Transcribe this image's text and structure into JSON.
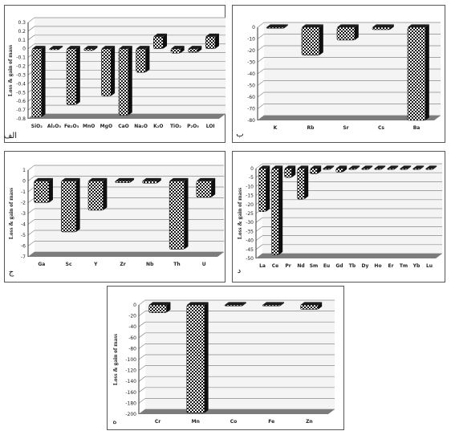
{
  "chart_data": [
    {
      "type": "bar",
      "panel_label": "الف",
      "ylabel": "Loss & gain of mass",
      "ylim": [
        -0.8,
        0.3
      ],
      "yticks": [
        "0.3",
        "0.2",
        "0.1",
        "0",
        "-0.1",
        "-0.2",
        "-0.3",
        "-0.4",
        "-0.5",
        "-0.6",
        "-0.7",
        "-0.8"
      ],
      "yticks_values": [
        0.3,
        0.2,
        0.1,
        0,
        -0.1,
        -0.2,
        -0.3,
        -0.4,
        -0.5,
        -0.6,
        -0.7,
        -0.8
      ],
      "categories": [
        "SiO₂",
        "Al₂O₃",
        "Fe₂O₃",
        "MnO",
        "MgO",
        "CaO",
        "Na₂O",
        "K₂O",
        "TiO₂",
        "P₂O₅",
        "LOI"
      ],
      "values": [
        -0.78,
        -0.01,
        -0.64,
        -0.02,
        -0.54,
        -0.76,
        -0.27,
        0.14,
        -0.05,
        -0.04,
        0.14
      ],
      "grid": true
    },
    {
      "type": "bar",
      "panel_label": "ب",
      "ylabel": "",
      "ylim": [
        -80,
        0
      ],
      "yticks": [
        "0",
        "-10",
        "-20",
        "-30",
        "-40",
        "-50",
        "-60",
        "-70",
        "-80"
      ],
      "yticks_values": [
        0,
        -10,
        -20,
        -30,
        -40,
        -50,
        -60,
        -70,
        -80
      ],
      "categories": [
        "K",
        "Rb",
        "Sr",
        "Cs",
        "Ba"
      ],
      "values": [
        -0.5,
        -24,
        -11,
        -2,
        -80
      ],
      "grid": true
    },
    {
      "type": "bar",
      "panel_label": "ج",
      "ylabel": "Loss & gain of mass",
      "ylim": [
        -7,
        1
      ],
      "yticks": [
        "1",
        "0",
        "-1",
        "-2",
        "-3",
        "-4",
        "-5",
        "-6",
        "-7"
      ],
      "yticks_values": [
        1,
        0,
        -1,
        -2,
        -3,
        -4,
        -5,
        -6,
        -7
      ],
      "categories": [
        "Ga",
        "Sc",
        "Y",
        "Zr",
        "Nb",
        "Th",
        "U"
      ],
      "values": [
        -2.0,
        -4.7,
        -2.7,
        -0.15,
        -0.2,
        -6.3,
        -1.5
      ],
      "grid": true
    },
    {
      "type": "bar",
      "panel_label": "د",
      "ylabel": "Loss & gain of mass",
      "ylim": [
        -50,
        0
      ],
      "yticks": [
        "0",
        "-5",
        "-10",
        "-15",
        "-20",
        "-25",
        "-30",
        "-35",
        "-40",
        "-45",
        "-50"
      ],
      "yticks_values": [
        0,
        -5,
        -10,
        -15,
        -20,
        -25,
        -30,
        -35,
        -40,
        -45,
        -50
      ],
      "categories": [
        "La",
        "Ce",
        "Pr",
        "Nd",
        "Sm",
        "Eu",
        "Gd",
        "Tb",
        "Dy",
        "Ho",
        "Er",
        "Tm",
        "Yb",
        "Lu"
      ],
      "values": [
        -24,
        -48,
        -5,
        -17,
        -3,
        -0.5,
        -2,
        -0.4,
        -0.4,
        -0.3,
        -0.3,
        -0.2,
        -0.3,
        -0.2
      ],
      "grid": true
    },
    {
      "type": "bar",
      "panel_label": "ه",
      "ylabel": "Loss & gain of mass",
      "ylim": [
        -200,
        0
      ],
      "yticks": [
        "0",
        "-20",
        "-40",
        "-60",
        "-80",
        "-100",
        "-120",
        "-140",
        "-160",
        "-180",
        "-200"
      ],
      "yticks_values": [
        0,
        -20,
        -40,
        -60,
        -80,
        -100,
        -120,
        -140,
        -160,
        -180,
        -200
      ],
      "categories": [
        "Cr",
        "Mn",
        "Co",
        "Fe",
        "Zn"
      ],
      "values": [
        -14,
        -198,
        -0.5,
        -0.5,
        -8
      ],
      "grid": true
    }
  ]
}
